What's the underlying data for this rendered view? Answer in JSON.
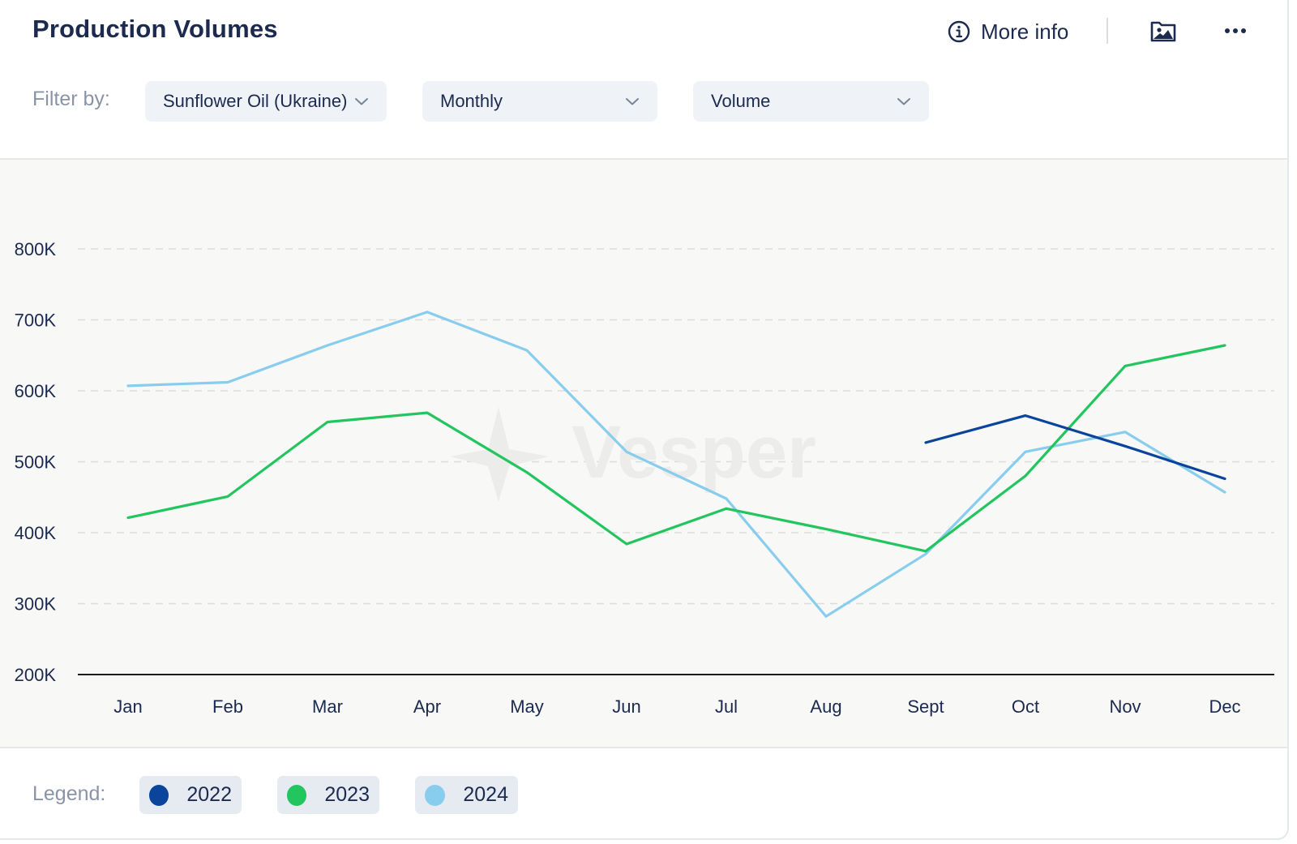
{
  "header": {
    "title": "Production Volumes",
    "more_info_label": "More info",
    "info_icon": "info-circle-icon",
    "image_icon": "image-folder-icon",
    "menu_icon": "more-dots-icon"
  },
  "filters": {
    "label": "Filter by:",
    "product": "Sunflower Oil (Ukraine)",
    "period": "Monthly",
    "metric": "Volume"
  },
  "legend": {
    "label": "Legend:",
    "items": [
      {
        "label": "2022",
        "color": "#0a449b"
      },
      {
        "label": "2023",
        "color": "#22c55e"
      },
      {
        "label": "2024",
        "color": "#89cdee"
      }
    ]
  },
  "watermark": "Vesper",
  "chart_data": {
    "type": "line",
    "categories": [
      "Jan",
      "Feb",
      "Mar",
      "Apr",
      "May",
      "Jun",
      "Jul",
      "Aug",
      "Sept",
      "Oct",
      "Nov",
      "Dec"
    ],
    "ylim": [
      200000,
      800000
    ],
    "yticks": [
      200000,
      300000,
      400000,
      500000,
      600000,
      700000,
      800000
    ],
    "ytick_labels": [
      "200K",
      "300K",
      "400K",
      "500K",
      "600K",
      "700K",
      "800K"
    ],
    "grid": true,
    "series": [
      {
        "name": "2022",
        "color": "#0a449b",
        "values": [
          null,
          null,
          null,
          null,
          null,
          null,
          null,
          null,
          527000,
          565000,
          522000,
          476000
        ]
      },
      {
        "name": "2023",
        "color": "#22c55e",
        "values": [
          421000,
          451000,
          556000,
          569000,
          485000,
          384000,
          434000,
          405000,
          374000,
          480000,
          635000,
          664000
        ]
      },
      {
        "name": "2024",
        "color": "#89cdee",
        "values": [
          607000,
          612000,
          664000,
          711000,
          657000,
          514000,
          448000,
          282000,
          370000,
          514000,
          542000,
          457000
        ]
      }
    ]
  }
}
